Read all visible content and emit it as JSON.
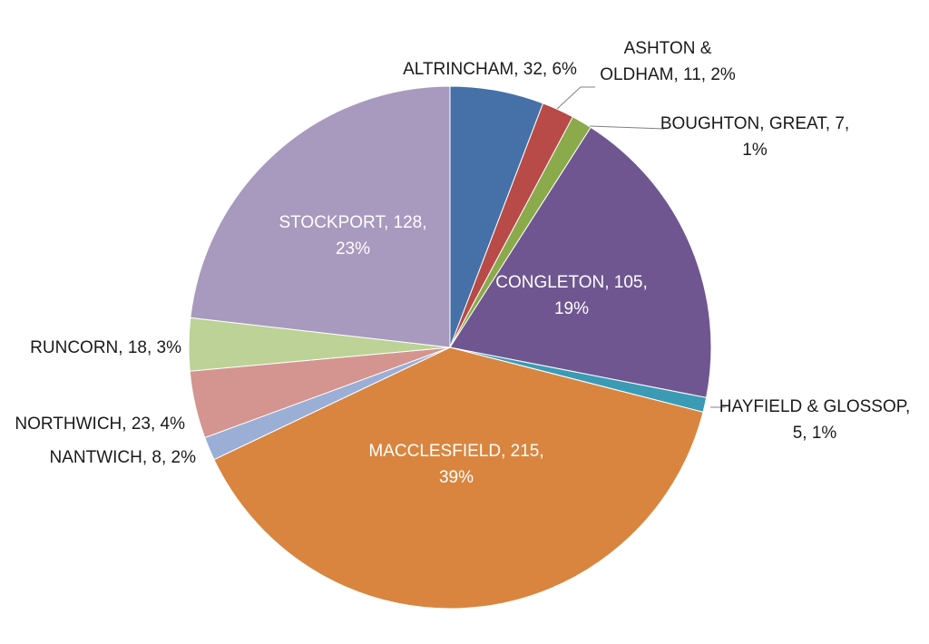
{
  "chart_data": {
    "type": "pie",
    "title": "",
    "legend": "none",
    "slices": [
      {
        "name": "ALTRINCHAM",
        "value": 32,
        "percent": "6%",
        "label": "ALTRINCHAM, 32, 6%",
        "color": "#4571a8"
      },
      {
        "name": "ASHTON & OLDHAM",
        "value": 11,
        "percent": "2%",
        "label": "ASHTON & OLDHAM, 11, 2%",
        "color": "#b84a47"
      },
      {
        "name": "BOUGHTON, GREAT",
        "value": 7,
        "percent": "1%",
        "label": "BOUGHTON, GREAT, 7, 1%",
        "color": "#8aaa4c"
      },
      {
        "name": "CONGLETON",
        "value": 105,
        "percent": "19%",
        "label": "CONGLETON, 105, 19%",
        "color": "#6f5690"
      },
      {
        "name": "HAYFIELD & GLOSSOP",
        "value": 5,
        "percent": "1%",
        "label": "HAYFIELD & GLOSSOP, 5, 1%",
        "color": "#3b9bb5"
      },
      {
        "name": "MACCLESFIELD",
        "value": 215,
        "percent": "39%",
        "label": "MACCLESFIELD, 215, 39%",
        "color": "#d9853f"
      },
      {
        "name": "NANTWICH",
        "value": 8,
        "percent": "2%",
        "label": "NANTWICH, 8, 2%",
        "color": "#9aaed6"
      },
      {
        "name": "NORTHWICH",
        "value": 23,
        "percent": "4%",
        "label": "NORTHWICH, 23, 4%",
        "color": "#d4948f"
      },
      {
        "name": "RUNCORN",
        "value": 18,
        "percent": "3%",
        "label": "RUNCORN, 18, 3%",
        "color": "#bcd296"
      },
      {
        "name": "STOCKPORT",
        "value": 128,
        "percent": "23%",
        "label": "STOCKPORT, 128, 23%",
        "color": "#a899be"
      }
    ]
  }
}
